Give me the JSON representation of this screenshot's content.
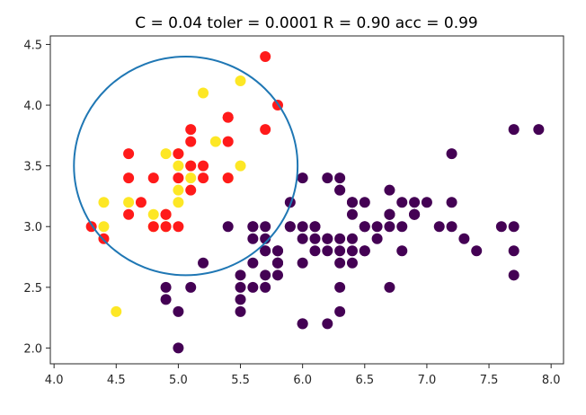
{
  "chart_data": {
    "type": "scatter",
    "title": "C = 0.04 toler = 0.0001 R = 0.90 acc = 0.99",
    "xlabel": "",
    "ylabel": "",
    "xlim": [
      3.97,
      8.1
    ],
    "ylim": [
      1.87,
      4.57
    ],
    "xticks": [
      "4.0",
      "4.5",
      "5.0",
      "5.5",
      "6.0",
      "6.5",
      "7.0",
      "7.5",
      "8.0"
    ],
    "xtick_values": [
      4.0,
      4.5,
      5.0,
      5.5,
      6.0,
      6.5,
      7.0,
      7.5,
      8.0
    ],
    "yticks": [
      "2.0",
      "2.5",
      "3.0",
      "3.5",
      "4.0",
      "4.5"
    ],
    "ytick_values": [
      2.0,
      2.5,
      3.0,
      3.5,
      4.0,
      4.5
    ],
    "grid": false,
    "colors": {
      "class_outside": "#440154",
      "class_inside": "#fde725",
      "support_vectors": "#ff1a1a",
      "circle": "#1f77b4",
      "axes": "#262626"
    },
    "circle": {
      "center": [
        5.06,
        3.5
      ],
      "radius": 0.9
    },
    "series": [
      {
        "values": [
          [
            7.0,
            3.2
          ],
          [
            6.4,
            3.2
          ],
          [
            6.9,
            3.1
          ],
          [
            5.5,
            2.3
          ],
          [
            6.5,
            2.8
          ],
          [
            5.7,
            2.8
          ],
          [
            6.3,
            3.3
          ],
          [
            4.9,
            2.4
          ],
          [
            6.6,
            2.9
          ],
          [
            5.2,
            2.7
          ],
          [
            5.0,
            2.0
          ],
          [
            5.9,
            3.0
          ],
          [
            6.0,
            2.2
          ],
          [
            6.1,
            2.9
          ],
          [
            5.6,
            2.9
          ],
          [
            6.7,
            3.1
          ],
          [
            5.6,
            3.0
          ],
          [
            5.8,
            2.7
          ],
          [
            6.2,
            2.2
          ],
          [
            5.6,
            2.5
          ],
          [
            5.9,
            3.2
          ],
          [
            6.1,
            2.8
          ],
          [
            6.3,
            2.5
          ],
          [
            6.4,
            2.9
          ],
          [
            6.6,
            3.0
          ],
          [
            6.8,
            2.8
          ],
          [
            6.7,
            3.0
          ],
          [
            6.0,
            2.9
          ],
          [
            5.7,
            2.6
          ],
          [
            5.5,
            2.4
          ],
          [
            5.8,
            2.7
          ],
          [
            6.0,
            2.7
          ],
          [
            5.4,
            3.0
          ],
          [
            6.0,
            3.4
          ],
          [
            6.7,
            3.1
          ],
          [
            6.3,
            2.3
          ],
          [
            5.6,
            3.0
          ],
          [
            5.5,
            2.5
          ],
          [
            5.5,
            2.6
          ],
          [
            6.1,
            3.0
          ],
          [
            5.8,
            2.6
          ],
          [
            5.0,
            2.3
          ],
          [
            5.6,
            2.7
          ],
          [
            5.7,
            3.0
          ],
          [
            5.7,
            2.9
          ],
          [
            6.2,
            2.9
          ],
          [
            5.1,
            2.5
          ],
          [
            5.7,
            2.8
          ],
          [
            6.3,
            3.3
          ],
          [
            7.1,
            3.0
          ],
          [
            6.5,
            3.0
          ],
          [
            7.6,
            3.0
          ],
          [
            4.9,
            2.5
          ],
          [
            7.3,
            2.9
          ],
          [
            6.7,
            2.5
          ],
          [
            7.2,
            3.6
          ],
          [
            6.5,
            3.2
          ],
          [
            6.8,
            3.0
          ],
          [
            5.7,
            2.5
          ],
          [
            6.4,
            3.2
          ],
          [
            7.7,
            3.8
          ],
          [
            7.7,
            2.6
          ],
          [
            6.9,
            3.2
          ],
          [
            7.7,
            2.8
          ],
          [
            6.7,
            3.3
          ],
          [
            7.2,
            3.2
          ],
          [
            6.2,
            2.8
          ],
          [
            6.1,
            3.0
          ],
          [
            7.2,
            3.0
          ],
          [
            7.4,
            2.8
          ],
          [
            7.9,
            3.8
          ],
          [
            6.4,
            2.8
          ],
          [
            6.3,
            2.8
          ],
          [
            7.7,
            3.0
          ],
          [
            6.3,
            3.4
          ],
          [
            6.4,
            3.1
          ],
          [
            6.9,
            3.1
          ],
          [
            6.7,
            3.1
          ],
          [
            6.8,
            3.2
          ],
          [
            6.5,
            3.0
          ],
          [
            6.2,
            3.4
          ],
          [
            5.9,
            3.0
          ],
          [
            6.4,
            2.7
          ],
          [
            5.8,
            2.8
          ],
          [
            6.3,
            2.9
          ],
          [
            6.5,
            2.8
          ],
          [
            6.9,
            3.1
          ],
          [
            5.8,
            2.7
          ],
          [
            6.2,
            2.9
          ],
          [
            6.0,
            3.0
          ],
          [
            5.8,
            2.8
          ],
          [
            6.3,
            2.7
          ],
          [
            6.0,
            2.2
          ]
        ]
      },
      {
        "values": [
          [
            5.2,
            4.1
          ],
          [
            5.5,
            4.2
          ],
          [
            4.4,
            3.2
          ],
          [
            4.4,
            3.0
          ],
          [
            4.5,
            2.3
          ],
          [
            4.6,
            3.2
          ],
          [
            4.8,
            3.1
          ],
          [
            4.8,
            3.0
          ],
          [
            4.9,
            3.1
          ],
          [
            5.0,
            3.5
          ],
          [
            5.0,
            3.3
          ],
          [
            5.0,
            3.2
          ],
          [
            5.0,
            3.6
          ],
          [
            5.1,
            3.4
          ],
          [
            5.1,
            3.5
          ],
          [
            5.3,
            3.7
          ],
          [
            5.5,
            3.5
          ],
          [
            4.9,
            3.0
          ],
          [
            4.9,
            3.6
          ],
          [
            5.4,
            3.4
          ]
        ]
      },
      {
        "values": [
          [
            5.7,
            4.4
          ],
          [
            5.8,
            4.0
          ],
          [
            5.7,
            3.8
          ],
          [
            5.4,
            3.9
          ],
          [
            5.1,
            3.8
          ],
          [
            5.1,
            3.7
          ],
          [
            5.0,
            3.6
          ],
          [
            5.4,
            3.7
          ],
          [
            4.6,
            3.6
          ],
          [
            5.1,
            3.5
          ],
          [
            5.2,
            3.5
          ],
          [
            4.6,
            3.4
          ],
          [
            5.0,
            3.4
          ],
          [
            5.2,
            3.4
          ],
          [
            4.8,
            3.4
          ],
          [
            5.4,
            3.4
          ],
          [
            4.9,
            3.1
          ],
          [
            5.1,
            3.3
          ],
          [
            4.7,
            3.2
          ],
          [
            4.6,
            3.1
          ],
          [
            4.8,
            3.0
          ],
          [
            4.9,
            3.0
          ],
          [
            5.0,
            3.0
          ],
          [
            4.3,
            3.0
          ],
          [
            4.4,
            2.9
          ],
          [
            4.9,
            3.1
          ],
          [
            5.4,
            3.9
          ]
        ]
      }
    ]
  }
}
